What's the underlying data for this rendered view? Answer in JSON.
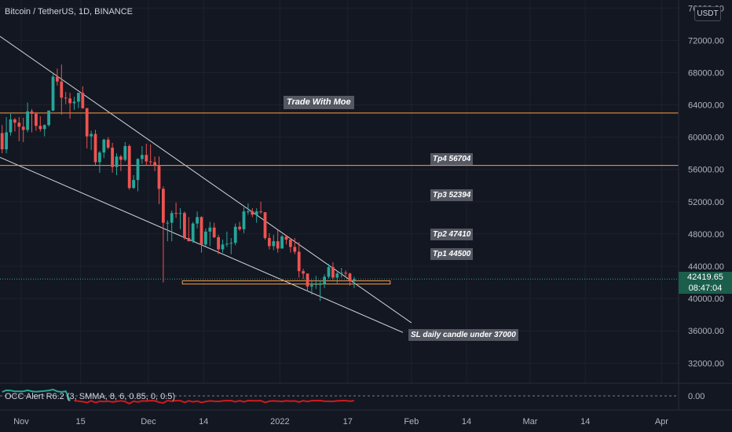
{
  "header": {
    "title": "Bitcoin / TetherUS, 1D, BINANCE",
    "currency": "USDT"
  },
  "indicator": {
    "label": "OCC Alert R6.2 (3, SMMA, 8, 6, 0.85, 0, 0.5)",
    "zero_label": "0.00"
  },
  "price_tag": {
    "price": "42419.65",
    "countdown": "08:47:04",
    "color": "#1b5e4b"
  },
  "annotations": {
    "brand": "Trade With Moe",
    "tp4": "Tp4 56704",
    "tp3": "Tp3 52394",
    "tp2": "Tp2 47410",
    "tp1": "Tp1 44500",
    "sl": "SL  daily candle under 37000"
  },
  "colors": {
    "background": "#131722",
    "up": "#26a69a",
    "down": "#ef5350",
    "level_line": "#f7a046",
    "trend_line": "#d1d4dc",
    "grid": "#1e222d"
  },
  "chart_data": {
    "type": "candlestick",
    "title": "Bitcoin / TetherUS, 1D, BINANCE",
    "y_axis": {
      "ticks": [
        76000,
        72000,
        68000,
        64000,
        60000,
        56000,
        52000,
        48000,
        44000,
        40000,
        36000,
        32000
      ],
      "tick_labels": [
        "76000.00",
        "72000.00",
        "68000.00",
        "64000.00",
        "60000.00",
        "56000.00",
        "52000.00",
        "48000.00",
        "44000.00",
        "40000.00",
        "36000.00",
        "32000.00"
      ],
      "range": [
        29500,
        77000
      ]
    },
    "x_axis": {
      "tick_labels": [
        "Nov",
        "15",
        "Dec",
        "14",
        "2022",
        "17",
        "Feb",
        "14",
        "Mar",
        "14",
        "Apr"
      ],
      "tick_dates": [
        "2021-11-01",
        "2021-11-15",
        "2021-12-01",
        "2021-12-14",
        "2022-01-01",
        "2022-01-17",
        "2022-02-01",
        "2022-02-14",
        "2022-03-01",
        "2022-03-14",
        "2022-04-01"
      ],
      "range": [
        "2021-10-27",
        "2022-04-05"
      ]
    },
    "candles": [
      {
        "t": "2021-10-27",
        "o": 60500,
        "h": 61500,
        "l": 58000,
        "c": 58500
      },
      {
        "t": "2021-10-28",
        "o": 58500,
        "h": 62500,
        "l": 58000,
        "c": 60600
      },
      {
        "t": "2021-10-29",
        "o": 60600,
        "h": 62900,
        "l": 60200,
        "c": 62200
      },
      {
        "t": "2021-10-30",
        "o": 62200,
        "h": 62400,
        "l": 60700,
        "c": 61800
      },
      {
        "t": "2021-10-31",
        "o": 61800,
        "h": 62500,
        "l": 59500,
        "c": 61300
      },
      {
        "t": "2021-11-01",
        "o": 61300,
        "h": 62400,
        "l": 59400,
        "c": 60900
      },
      {
        "t": "2021-11-02",
        "o": 60900,
        "h": 64300,
        "l": 60600,
        "c": 63200
      },
      {
        "t": "2021-11-03",
        "o": 63200,
        "h": 63500,
        "l": 60600,
        "c": 62900
      },
      {
        "t": "2021-11-04",
        "o": 62900,
        "h": 63100,
        "l": 60800,
        "c": 61400
      },
      {
        "t": "2021-11-05",
        "o": 61400,
        "h": 62600,
        "l": 60700,
        "c": 61000
      },
      {
        "t": "2021-11-06",
        "o": 61000,
        "h": 61600,
        "l": 60100,
        "c": 61500
      },
      {
        "t": "2021-11-07",
        "o": 61500,
        "h": 63300,
        "l": 61300,
        "c": 63300
      },
      {
        "t": "2021-11-08",
        "o": 63300,
        "h": 67800,
        "l": 63200,
        "c": 67500
      },
      {
        "t": "2021-11-09",
        "o": 67500,
        "h": 68500,
        "l": 66400,
        "c": 66900
      },
      {
        "t": "2021-11-10",
        "o": 66900,
        "h": 69000,
        "l": 62800,
        "c": 64900
      },
      {
        "t": "2021-11-11",
        "o": 64900,
        "h": 65600,
        "l": 64100,
        "c": 64800
      },
      {
        "t": "2021-11-12",
        "o": 64800,
        "h": 65500,
        "l": 62300,
        "c": 64200
      },
      {
        "t": "2021-11-13",
        "o": 64200,
        "h": 65000,
        "l": 63400,
        "c": 64400
      },
      {
        "t": "2021-11-14",
        "o": 64400,
        "h": 65500,
        "l": 63600,
        "c": 65500
      },
      {
        "t": "2021-11-15",
        "o": 65500,
        "h": 66300,
        "l": 63500,
        "c": 63600
      },
      {
        "t": "2021-11-16",
        "o": 63600,
        "h": 63600,
        "l": 58600,
        "c": 60100
      },
      {
        "t": "2021-11-17",
        "o": 60100,
        "h": 60800,
        "l": 58400,
        "c": 60400
      },
      {
        "t": "2021-11-18",
        "o": 60400,
        "h": 60900,
        "l": 56500,
        "c": 56900
      },
      {
        "t": "2021-11-19",
        "o": 56900,
        "h": 58300,
        "l": 55600,
        "c": 58100
      },
      {
        "t": "2021-11-20",
        "o": 58100,
        "h": 59800,
        "l": 57400,
        "c": 59700
      },
      {
        "t": "2021-11-21",
        "o": 59700,
        "h": 60000,
        "l": 58500,
        "c": 58700
      },
      {
        "t": "2021-11-22",
        "o": 58700,
        "h": 59300,
        "l": 55600,
        "c": 56300
      },
      {
        "t": "2021-11-23",
        "o": 56300,
        "h": 58000,
        "l": 55300,
        "c": 57600
      },
      {
        "t": "2021-11-24",
        "o": 57600,
        "h": 57800,
        "l": 55800,
        "c": 57200
      },
      {
        "t": "2021-11-25",
        "o": 57200,
        "h": 59400,
        "l": 57000,
        "c": 58900
      },
      {
        "t": "2021-11-26",
        "o": 58900,
        "h": 59100,
        "l": 53500,
        "c": 53700
      },
      {
        "t": "2021-11-27",
        "o": 53700,
        "h": 55300,
        "l": 53600,
        "c": 54700
      },
      {
        "t": "2021-11-28",
        "o": 54700,
        "h": 57400,
        "l": 53300,
        "c": 57300
      },
      {
        "t": "2021-11-29",
        "o": 57300,
        "h": 58900,
        "l": 56700,
        "c": 57800
      },
      {
        "t": "2021-11-30",
        "o": 57800,
        "h": 59200,
        "l": 56500,
        "c": 57000
      },
      {
        "t": "2021-12-01",
        "o": 57000,
        "h": 59100,
        "l": 56500,
        "c": 56900
      },
      {
        "t": "2021-12-02",
        "o": 56900,
        "h": 57600,
        "l": 55800,
        "c": 56500
      },
      {
        "t": "2021-12-03",
        "o": 56500,
        "h": 57600,
        "l": 51700,
        "c": 53600
      },
      {
        "t": "2021-12-04",
        "o": 53600,
        "h": 53900,
        "l": 42000,
        "c": 49400
      },
      {
        "t": "2021-12-05",
        "o": 49400,
        "h": 49700,
        "l": 47100,
        "c": 49400
      },
      {
        "t": "2021-12-06",
        "o": 49400,
        "h": 50900,
        "l": 47100,
        "c": 50600
      },
      {
        "t": "2021-12-07",
        "o": 50600,
        "h": 51900,
        "l": 50000,
        "c": 50500
      },
      {
        "t": "2021-12-08",
        "o": 50500,
        "h": 51200,
        "l": 48600,
        "c": 50600
      },
      {
        "t": "2021-12-09",
        "o": 50600,
        "h": 50800,
        "l": 47300,
        "c": 47500
      },
      {
        "t": "2021-12-10",
        "o": 47500,
        "h": 50100,
        "l": 47300,
        "c": 47100
      },
      {
        "t": "2021-12-11",
        "o": 47100,
        "h": 49500,
        "l": 46900,
        "c": 49300
      },
      {
        "t": "2021-12-12",
        "o": 49300,
        "h": 50800,
        "l": 48700,
        "c": 50100
      },
      {
        "t": "2021-12-13",
        "o": 50100,
        "h": 50200,
        "l": 45700,
        "c": 46700
      },
      {
        "t": "2021-12-14",
        "o": 46700,
        "h": 48700,
        "l": 46500,
        "c": 48300
      },
      {
        "t": "2021-12-15",
        "o": 48300,
        "h": 49500,
        "l": 46500,
        "c": 48800
      },
      {
        "t": "2021-12-16",
        "o": 48800,
        "h": 49400,
        "l": 47500,
        "c": 47600
      },
      {
        "t": "2021-12-17",
        "o": 47600,
        "h": 47900,
        "l": 45500,
        "c": 46100
      },
      {
        "t": "2021-12-18",
        "o": 46100,
        "h": 47300,
        "l": 45700,
        "c": 46700
      },
      {
        "t": "2021-12-19",
        "o": 46700,
        "h": 48300,
        "l": 46400,
        "c": 46800
      },
      {
        "t": "2021-12-20",
        "o": 46800,
        "h": 47500,
        "l": 45500,
        "c": 46900
      },
      {
        "t": "2021-12-21",
        "o": 46900,
        "h": 49300,
        "l": 46600,
        "c": 48900
      },
      {
        "t": "2021-12-22",
        "o": 48900,
        "h": 49500,
        "l": 48400,
        "c": 48600
      },
      {
        "t": "2021-12-23",
        "o": 48600,
        "h": 51300,
        "l": 48100,
        "c": 50800
      },
      {
        "t": "2021-12-24",
        "o": 50800,
        "h": 51800,
        "l": 50400,
        "c": 50800
      },
      {
        "t": "2021-12-25",
        "o": 50800,
        "h": 51200,
        "l": 50100,
        "c": 50400
      },
      {
        "t": "2021-12-26",
        "o": 50400,
        "h": 51200,
        "l": 49400,
        "c": 50800
      },
      {
        "t": "2021-12-27",
        "o": 50800,
        "h": 52000,
        "l": 50500,
        "c": 50700
      },
      {
        "t": "2021-12-28",
        "o": 50700,
        "h": 50700,
        "l": 47300,
        "c": 47500
      },
      {
        "t": "2021-12-29",
        "o": 47500,
        "h": 48100,
        "l": 46100,
        "c": 46500
      },
      {
        "t": "2021-12-30",
        "o": 46500,
        "h": 47900,
        "l": 46000,
        "c": 47100
      },
      {
        "t": "2021-12-31",
        "o": 47100,
        "h": 48500,
        "l": 45700,
        "c": 46200
      },
      {
        "t": "2022-01-01",
        "o": 46200,
        "h": 47900,
        "l": 46200,
        "c": 47700
      },
      {
        "t": "2022-01-02",
        "o": 47700,
        "h": 47900,
        "l": 46700,
        "c": 47300
      },
      {
        "t": "2022-01-03",
        "o": 47300,
        "h": 47500,
        "l": 45700,
        "c": 46400
      },
      {
        "t": "2022-01-04",
        "o": 46400,
        "h": 47500,
        "l": 45500,
        "c": 45800
      },
      {
        "t": "2022-01-05",
        "o": 45800,
        "h": 47000,
        "l": 42600,
        "c": 43400
      },
      {
        "t": "2022-01-06",
        "o": 43400,
        "h": 43700,
        "l": 42400,
        "c": 43100
      },
      {
        "t": "2022-01-07",
        "o": 43100,
        "h": 43100,
        "l": 40900,
        "c": 41500
      },
      {
        "t": "2022-01-08",
        "o": 41500,
        "h": 42300,
        "l": 40500,
        "c": 41700
      },
      {
        "t": "2022-01-09",
        "o": 41700,
        "h": 42800,
        "l": 41200,
        "c": 41800
      },
      {
        "t": "2022-01-10",
        "o": 41800,
        "h": 42200,
        "l": 39700,
        "c": 41800
      },
      {
        "t": "2022-01-11",
        "o": 41800,
        "h": 43000,
        "l": 41300,
        "c": 42700
      },
      {
        "t": "2022-01-12",
        "o": 42700,
        "h": 44300,
        "l": 42500,
        "c": 43900
      },
      {
        "t": "2022-01-13",
        "o": 43900,
        "h": 44500,
        "l": 42300,
        "c": 42600
      },
      {
        "t": "2022-01-14",
        "o": 42600,
        "h": 43400,
        "l": 41900,
        "c": 43100
      },
      {
        "t": "2022-01-15",
        "o": 43100,
        "h": 43800,
        "l": 42600,
        "c": 43200
      },
      {
        "t": "2022-01-16",
        "o": 43200,
        "h": 43500,
        "l": 42600,
        "c": 43100
      },
      {
        "t": "2022-01-17",
        "o": 43100,
        "h": 43200,
        "l": 41600,
        "c": 42200
      },
      {
        "t": "2022-01-18",
        "o": 42200,
        "h": 42700,
        "l": 41300,
        "c": 42400
      }
    ],
    "levels": [
      {
        "price": 63000
      },
      {
        "price": 56500
      },
      {
        "price": 42000
      }
    ],
    "trendlines": [
      {
        "from": [
          "2021-10-27",
          72500
        ],
        "to": [
          "2022-02-01",
          37000
        ]
      },
      {
        "from": [
          "2021-10-27",
          57500
        ],
        "to": [
          "2022-01-30",
          35800
        ]
      }
    ]
  }
}
